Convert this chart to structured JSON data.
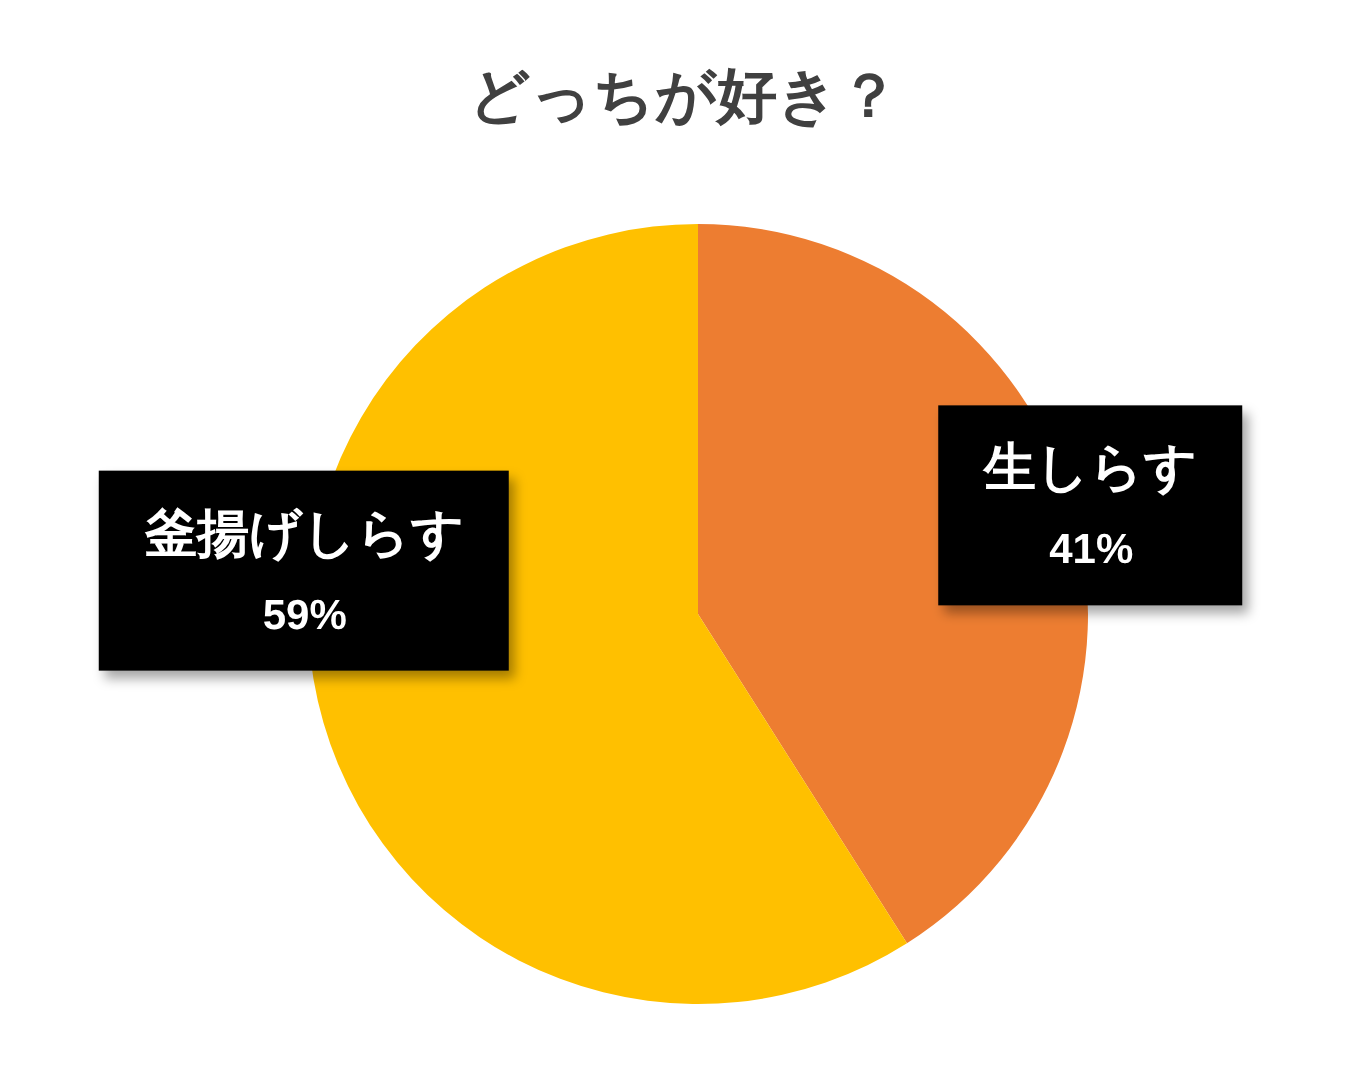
{
  "chart_data": {
    "type": "pie",
    "title": "どっちが好き？",
    "categories": [
      "生しらす",
      "釜揚げしらす"
    ],
    "values": [
      41,
      59
    ],
    "colors": [
      "#ed7d31",
      "#ffc000"
    ],
    "value_labels": [
      "41%",
      "59%"
    ]
  }
}
